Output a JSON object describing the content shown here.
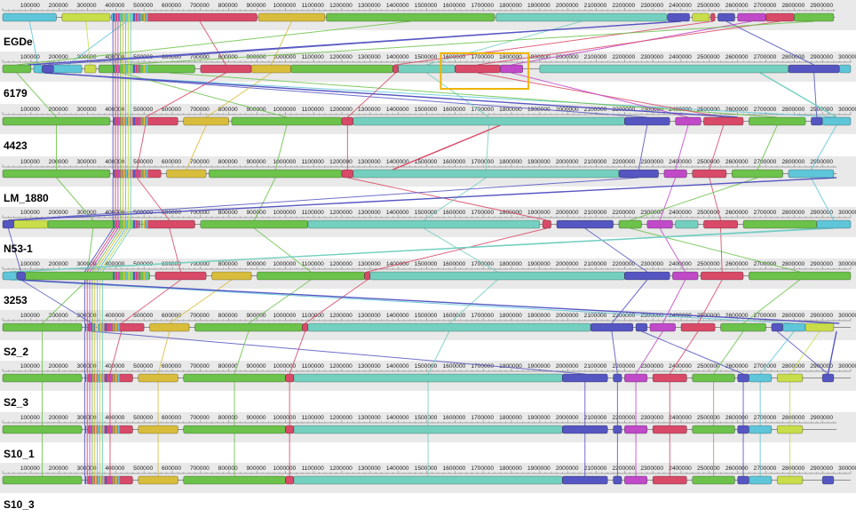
{
  "colors": {
    "green": "#6cc24a",
    "teal": "#74cfbf",
    "lime": "#c9dd4a",
    "yellow": "#d8bd3c",
    "red": "#d84a68",
    "purple": "#c04ac8",
    "blue": "#5656c2",
    "cyan": "#5ec6d8",
    "band": "#e9e9e9",
    "highlight": "#f0b400"
  },
  "ruler_ticks": [
    "100000",
    "200000",
    "300000",
    "400000",
    "500000",
    "600000",
    "700000",
    "800000",
    "900000",
    "1000000",
    "1100000",
    "1200000",
    "1300000",
    "1400000",
    "1500000",
    "1600000",
    "1700000",
    "1800000",
    "1900000",
    "2000000",
    "2100000",
    "2200000",
    "2300000",
    "2400000",
    "2500000",
    "2600000",
    "2700000",
    "2800000",
    "2900000",
    "3000000"
  ],
  "genomes": [
    {
      "name": "EGDe",
      "length": 2944528,
      "blocks": [
        [
          "cyan",
          0,
          190000
        ],
        [
          "lime",
          210000,
          380000
        ],
        [
          "cyan",
          385000,
          490000
        ],
        [
          "red",
          495000,
          900000
        ],
        [
          "yellow",
          905000,
          1140000
        ],
        [
          "green",
          1145000,
          1740000
        ],
        [
          "teal",
          1745000,
          2350000
        ],
        [
          "blue",
          2352000,
          2430000
        ],
        [
          "lime",
          2440000,
          2500000
        ],
        [
          "red",
          2505000,
          2520000
        ],
        [
          "blue",
          2530000,
          2590000
        ],
        [
          "purple",
          2600000,
          2700000
        ],
        [
          "red",
          2700000,
          2800000
        ],
        [
          "green",
          2800000,
          2940000
        ]
      ]
    },
    {
      "name": "6179",
      "length": 3000000,
      "blocks": [
        [
          "green",
          0,
          100000
        ],
        [
          "cyan",
          110000,
          140000
        ],
        [
          "blue",
          140000,
          180000
        ],
        [
          "cyan",
          180000,
          280000
        ],
        [
          "lime",
          290000,
          330000
        ],
        [
          "green",
          340000,
          500000
        ],
        [
          "green",
          500000,
          680000
        ],
        [
          "red",
          700000,
          880000
        ],
        [
          "yellow",
          880000,
          1020000
        ],
        [
          "green",
          1020000,
          1380000
        ],
        [
          "red",
          1380000,
          1400000
        ],
        [
          "teal",
          1400000,
          1600000
        ],
        [
          "red",
          1600000,
          1760000
        ],
        [
          "purple",
          1760000,
          1840000
        ],
        [
          "teal",
          1900000,
          2780000
        ],
        [
          "blue",
          2780000,
          2960000
        ],
        [
          "cyan",
          2960000,
          3000000
        ]
      ]
    },
    {
      "name": "4423",
      "length": 3000000,
      "blocks": [
        [
          "green",
          0,
          380000
        ],
        [
          "red",
          390000,
          620000
        ],
        [
          "yellow",
          640000,
          800000
        ],
        [
          "green",
          810000,
          1200000
        ],
        [
          "red",
          1200000,
          1240000
        ],
        [
          "teal",
          1240000,
          2200000
        ],
        [
          "blue",
          2200000,
          2360000
        ],
        [
          "purple",
          2380000,
          2470000
        ],
        [
          "red",
          2480000,
          2620000
        ],
        [
          "green",
          2640000,
          2840000
        ],
        [
          "blue",
          2860000,
          2900000
        ],
        [
          "cyan",
          2900000,
          3000000
        ]
      ]
    },
    {
      "name": "LM_1880",
      "length": 2950000,
      "blocks": [
        [
          "green",
          0,
          380000
        ],
        [
          "red",
          390000,
          560000
        ],
        [
          "yellow",
          580000,
          720000
        ],
        [
          "green",
          730000,
          1200000
        ],
        [
          "red",
          1200000,
          1240000
        ],
        [
          "teal",
          1240000,
          2180000
        ],
        [
          "blue",
          2180000,
          2320000
        ],
        [
          "purple",
          2340000,
          2420000
        ],
        [
          "red",
          2440000,
          2560000
        ],
        [
          "green",
          2580000,
          2760000
        ],
        [
          "cyan",
          2780000,
          2940000
        ]
      ]
    },
    {
      "name": "N53-1",
      "length": 3000000,
      "blocks": [
        [
          "blue",
          0,
          40000
        ],
        [
          "lime",
          40000,
          160000
        ],
        [
          "green",
          160000,
          480000
        ],
        [
          "red",
          500000,
          680000
        ],
        [
          "green",
          700000,
          1080000
        ],
        [
          "teal",
          1080000,
          1900000
        ],
        [
          "red",
          1910000,
          1940000
        ],
        [
          "blue",
          1960000,
          2160000
        ],
        [
          "green",
          2180000,
          2260000
        ],
        [
          "purple",
          2280000,
          2370000
        ],
        [
          "teal",
          2380000,
          2460000
        ],
        [
          "red",
          2480000,
          2600000
        ],
        [
          "green",
          2620000,
          2880000
        ],
        [
          "cyan",
          2880000,
          3000000
        ]
      ]
    },
    {
      "name": "3253",
      "length": 3000000,
      "blocks": [
        [
          "cyan",
          0,
          50000
        ],
        [
          "blue",
          50000,
          80000
        ],
        [
          "green",
          80000,
          520000
        ],
        [
          "red",
          540000,
          720000
        ],
        [
          "yellow",
          740000,
          880000
        ],
        [
          "green",
          900000,
          1280000
        ],
        [
          "red",
          1280000,
          1300000
        ],
        [
          "teal",
          1300000,
          2200000
        ],
        [
          "blue",
          2200000,
          2360000
        ],
        [
          "purple",
          2370000,
          2460000
        ],
        [
          "red",
          2470000,
          2620000
        ],
        [
          "green",
          2640000,
          3000000
        ]
      ]
    },
    {
      "name": "S2_2",
      "length": 3000000,
      "blocks": [
        [
          "green",
          0,
          280000
        ],
        [
          "blue",
          300000,
          330000
        ],
        [
          "red",
          340000,
          500000
        ],
        [
          "yellow",
          520000,
          660000
        ],
        [
          "green",
          680000,
          1060000
        ],
        [
          "red",
          1060000,
          1080000
        ],
        [
          "teal",
          1080000,
          2080000
        ],
        [
          "blue",
          2080000,
          2230000
        ],
        [
          "blue",
          2240000,
          2280000
        ],
        [
          "purple",
          2290000,
          2380000
        ],
        [
          "red",
          2400000,
          2520000
        ],
        [
          "green",
          2540000,
          2700000
        ],
        [
          "blue",
          2720000,
          2760000
        ],
        [
          "cyan",
          2760000,
          2840000
        ],
        [
          "lime",
          2840000,
          2940000
        ]
      ]
    },
    {
      "name": "S2_3",
      "length": 3000000,
      "blocks": [
        [
          "green",
          0,
          280000
        ],
        [
          "red",
          300000,
          460000
        ],
        [
          "yellow",
          480000,
          620000
        ],
        [
          "green",
          640000,
          1000000
        ],
        [
          "red",
          1000000,
          1030000
        ],
        [
          "teal",
          1030000,
          1980000
        ],
        [
          "blue",
          1980000,
          2140000
        ],
        [
          "blue",
          2160000,
          2190000
        ],
        [
          "purple",
          2200000,
          2280000
        ],
        [
          "red",
          2300000,
          2420000
        ],
        [
          "green",
          2440000,
          2590000
        ],
        [
          "blue",
          2600000,
          2640000
        ],
        [
          "cyan",
          2640000,
          2720000
        ],
        [
          "lime",
          2740000,
          2830000
        ],
        [
          "blue",
          2900000,
          2940000
        ]
      ]
    },
    {
      "name": "S10_1",
      "length": 2950000,
      "blocks": [
        [
          "green",
          0,
          280000
        ],
        [
          "red",
          300000,
          460000
        ],
        [
          "yellow",
          480000,
          620000
        ],
        [
          "green",
          640000,
          1000000
        ],
        [
          "red",
          1000000,
          1030000
        ],
        [
          "teal",
          1030000,
          1980000
        ],
        [
          "blue",
          1980000,
          2140000
        ],
        [
          "blue",
          2160000,
          2190000
        ],
        [
          "purple",
          2200000,
          2280000
        ],
        [
          "red",
          2300000,
          2420000
        ],
        [
          "green",
          2440000,
          2590000
        ],
        [
          "blue",
          2600000,
          2640000
        ],
        [
          "cyan",
          2640000,
          2720000
        ],
        [
          "lime",
          2740000,
          2830000
        ]
      ]
    },
    {
      "name": "S10_3",
      "length": 3000000,
      "blocks": [
        [
          "green",
          0,
          280000
        ],
        [
          "red",
          300000,
          460000
        ],
        [
          "yellow",
          480000,
          620000
        ],
        [
          "green",
          640000,
          1000000
        ],
        [
          "red",
          1000000,
          1030000
        ],
        [
          "teal",
          1030000,
          1980000
        ],
        [
          "blue",
          1980000,
          2140000
        ],
        [
          "blue",
          2160000,
          2190000
        ],
        [
          "purple",
          2200000,
          2280000
        ],
        [
          "red",
          2300000,
          2420000
        ],
        [
          "green",
          2440000,
          2590000
        ],
        [
          "blue",
          2600000,
          2640000
        ],
        [
          "cyan",
          2640000,
          2720000
        ],
        [
          "lime",
          2740000,
          2830000
        ],
        [
          "blue",
          2900000,
          2940000
        ]
      ]
    }
  ]
}
